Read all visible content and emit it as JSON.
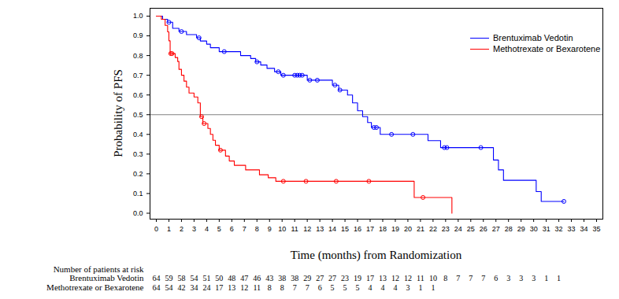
{
  "chart_data": {
    "type": "line",
    "x_label": "Time (months) from Randomization",
    "y_label": "Probability of PFS",
    "xlim": [
      -0.5,
      35.5
    ],
    "ylim": [
      -0.03,
      1.04
    ],
    "xticks": [
      0,
      1,
      2,
      3,
      4,
      5,
      6,
      7,
      8,
      9,
      10,
      11,
      12,
      13,
      14,
      15,
      16,
      17,
      18,
      19,
      20,
      21,
      22,
      23,
      24,
      25,
      26,
      27,
      28,
      29,
      30,
      31,
      32,
      33,
      34,
      35
    ],
    "yticks": [
      {
        "value": 0,
        "label": "0.0"
      },
      0.1,
      0.2,
      0.3,
      0.4,
      0.5,
      0.6,
      0.7,
      0.8,
      0.9,
      {
        "value": 1,
        "label": "1.0"
      }
    ],
    "grid": false,
    "legend": "upper right",
    "reference_line": 0.5,
    "at_risk_label": "Number of patients at risk",
    "series": [
      {
        "name": "Brentuximab Vedotin",
        "color": "#0000ff",
        "line_style": "step",
        "marker": "circle",
        "x": [
          0,
          0.5,
          0.9,
          1.3,
          1.8,
          2.4,
          3.2,
          3.5,
          4.0,
          4.3,
          5.0,
          6.7,
          7.5,
          7.9,
          8.3,
          8.8,
          9.4,
          9.9,
          12.0,
          14.0,
          14.5,
          15.2,
          15.6,
          16.0,
          16.4,
          16.8,
          17.1,
          17.8,
          21.6,
          22.6,
          26.8,
          27.2,
          27.6,
          30.2,
          30.6,
          32.4
        ],
        "values": [
          1.0,
          0.984,
          0.969,
          0.938,
          0.922,
          0.906,
          0.89,
          0.874,
          0.858,
          0.84,
          0.82,
          0.8,
          0.785,
          0.768,
          0.752,
          0.735,
          0.718,
          0.7,
          0.675,
          0.65,
          0.625,
          0.6,
          0.56,
          0.52,
          0.49,
          0.46,
          0.435,
          0.4,
          0.368,
          0.333,
          0.27,
          0.22,
          0.167,
          0.11,
          0.06,
          0.06
        ],
        "censored": {
          "x": [
            1.0,
            2.0,
            3.4,
            5.4,
            8.0,
            9.7,
            10.1,
            11.0,
            11.2,
            11.4,
            11.6,
            12.2,
            12.8,
            14.2,
            14.6,
            17.3,
            17.5,
            18.7,
            20.4,
            22.9,
            23.1,
            25.8,
            32.4
          ],
          "y": [
            0.969,
            0.922,
            0.89,
            0.82,
            0.768,
            0.718,
            0.7,
            0.7,
            0.7,
            0.7,
            0.7,
            0.675,
            0.675,
            0.65,
            0.625,
            0.435,
            0.435,
            0.4,
            0.4,
            0.333,
            0.333,
            0.333,
            0.06
          ]
        },
        "at_risk_x": [
          0,
          1,
          2,
          3,
          4,
          5,
          6,
          7,
          8,
          9,
          10,
          11,
          12,
          13,
          14,
          15,
          16,
          17,
          18,
          19,
          20,
          21,
          22,
          23,
          24,
          25,
          26,
          27,
          28,
          29,
          30,
          31,
          32
        ],
        "at_risk": [
          64,
          59,
          58,
          54,
          51,
          50,
          48,
          47,
          46,
          43,
          38,
          38,
          29,
          27,
          27,
          23,
          19,
          17,
          13,
          12,
          12,
          11,
          10,
          8,
          7,
          7,
          7,
          6,
          3,
          3,
          3,
          1,
          1
        ]
      },
      {
        "name": "Methotrexate or Bexarotene",
        "color": "#ff0000",
        "line_style": "step",
        "marker": "circle",
        "x": [
          0,
          0.4,
          0.7,
          0.9,
          1.0,
          1.1,
          1.5,
          1.7,
          1.8,
          2.0,
          2.2,
          2.4,
          2.6,
          3.0,
          3.3,
          3.5,
          3.7,
          4.1,
          4.3,
          4.5,
          4.7,
          5.0,
          5.5,
          5.8,
          6.2,
          7.1,
          8.2,
          8.9,
          9.5,
          20.5,
          23.5
        ],
        "values": [
          1.0,
          0.984,
          0.953,
          0.92,
          0.875,
          0.81,
          0.79,
          0.77,
          0.73,
          0.7,
          0.67,
          0.64,
          0.61,
          0.59,
          0.56,
          0.49,
          0.455,
          0.43,
          0.4,
          0.37,
          0.345,
          0.32,
          0.29,
          0.265,
          0.243,
          0.22,
          0.195,
          0.18,
          0.162,
          0.08,
          0.0
        ],
        "censored": {
          "x": [
            1.15,
            1.25,
            3.6,
            3.8,
            5.1,
            10.1,
            11.9,
            14.3,
            16.9,
            21.2
          ],
          "y": [
            0.81,
            0.81,
            0.49,
            0.455,
            0.32,
            0.162,
            0.162,
            0.162,
            0.162,
            0.08
          ]
        },
        "at_risk_x": [
          0,
          1,
          2,
          3,
          4,
          5,
          6,
          7,
          8,
          9,
          10,
          11,
          12,
          13,
          14,
          15,
          16,
          17,
          18,
          19,
          20,
          21,
          22
        ],
        "at_risk": [
          64,
          54,
          42,
          34,
          24,
          17,
          13,
          12,
          11,
          8,
          8,
          7,
          7,
          6,
          5,
          5,
          5,
          4,
          4,
          4,
          3,
          1,
          1
        ]
      }
    ]
  }
}
